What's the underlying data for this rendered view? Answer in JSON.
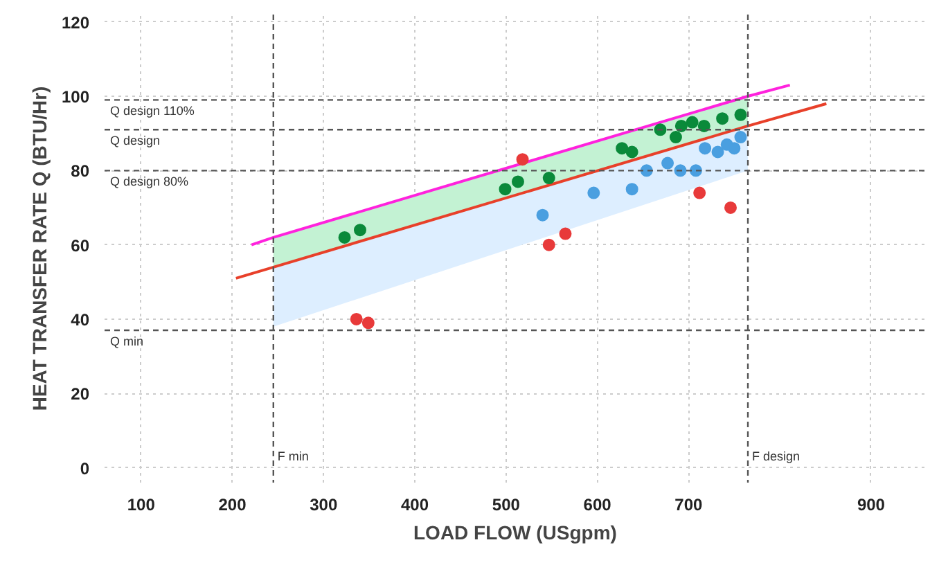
{
  "chart_data": {
    "type": "scatter",
    "xlabel": "LOAD FLOW (USgpm)",
    "ylabel": "HEAT TRANSFER RATE Q (BTU/Hr)",
    "xlim": [
      60,
      960
    ],
    "ylim": [
      -4,
      122
    ],
    "xticks": [
      100,
      200,
      300,
      400,
      500,
      600,
      700,
      900
    ],
    "yticks": [
      0,
      20,
      40,
      60,
      80,
      100,
      120
    ],
    "grid": true,
    "series": [
      {
        "type": "line",
        "color": "#e8402a",
        "x": [
          204,
          245,
          765,
          851
        ],
        "values": [
          51,
          54,
          92,
          98
        ],
        "lower": [
          null,
          38,
          80,
          null
        ],
        "upper": [
          null,
          54,
          92,
          null
        ]
      },
      {
        "type": "line",
        "color": "#ff22dd",
        "x": [
          221,
          245,
          765,
          811
        ],
        "values": [
          60,
          62,
          100,
          103
        ],
        "lower": [
          null,
          54,
          92,
          null
        ],
        "upper": [
          null,
          62,
          100,
          null
        ]
      },
      {
        "marker": "circle",
        "color": "#0a8a3a",
        "x": [
          323,
          340,
          499,
          513,
          547,
          627,
          638,
          669,
          686,
          692,
          704,
          717,
          737,
          757
        ],
        "values": [
          62,
          64,
          75,
          77,
          78,
          86,
          85,
          91,
          89,
          92,
          93,
          92,
          94,
          95
        ]
      },
      {
        "marker": "circle",
        "color": "#4a9fe0",
        "x": [
          540,
          596,
          638,
          654,
          677,
          691,
          708,
          718,
          732,
          742,
          750,
          757
        ],
        "values": [
          68,
          74,
          75,
          80,
          82,
          80,
          80,
          86,
          85,
          87,
          86,
          89
        ]
      },
      {
        "marker": "circle",
        "color": "#e83a3a",
        "x": [
          336,
          349,
          518,
          547,
          565,
          712,
          746
        ],
        "values": [
          40,
          39,
          83,
          60,
          63,
          74,
          70
        ]
      }
    ],
    "ref_lines": [
      {
        "axis": "y",
        "value": 99,
        "label": "Q design 110%",
        "line_style": "dashed"
      },
      {
        "axis": "y",
        "value": 91,
        "label": "Q design",
        "line_style": "dashed"
      },
      {
        "axis": "y",
        "value": 80,
        "label": "Q design 80%",
        "line_style": "dashed"
      },
      {
        "axis": "y",
        "value": 37,
        "label": "Q min",
        "line_style": "dashed"
      },
      {
        "axis": "x",
        "value": 245,
        "label": "F min",
        "line_style": "dashed"
      },
      {
        "axis": "x",
        "value": 765,
        "label": "F design",
        "line_style": "dashed"
      }
    ]
  }
}
